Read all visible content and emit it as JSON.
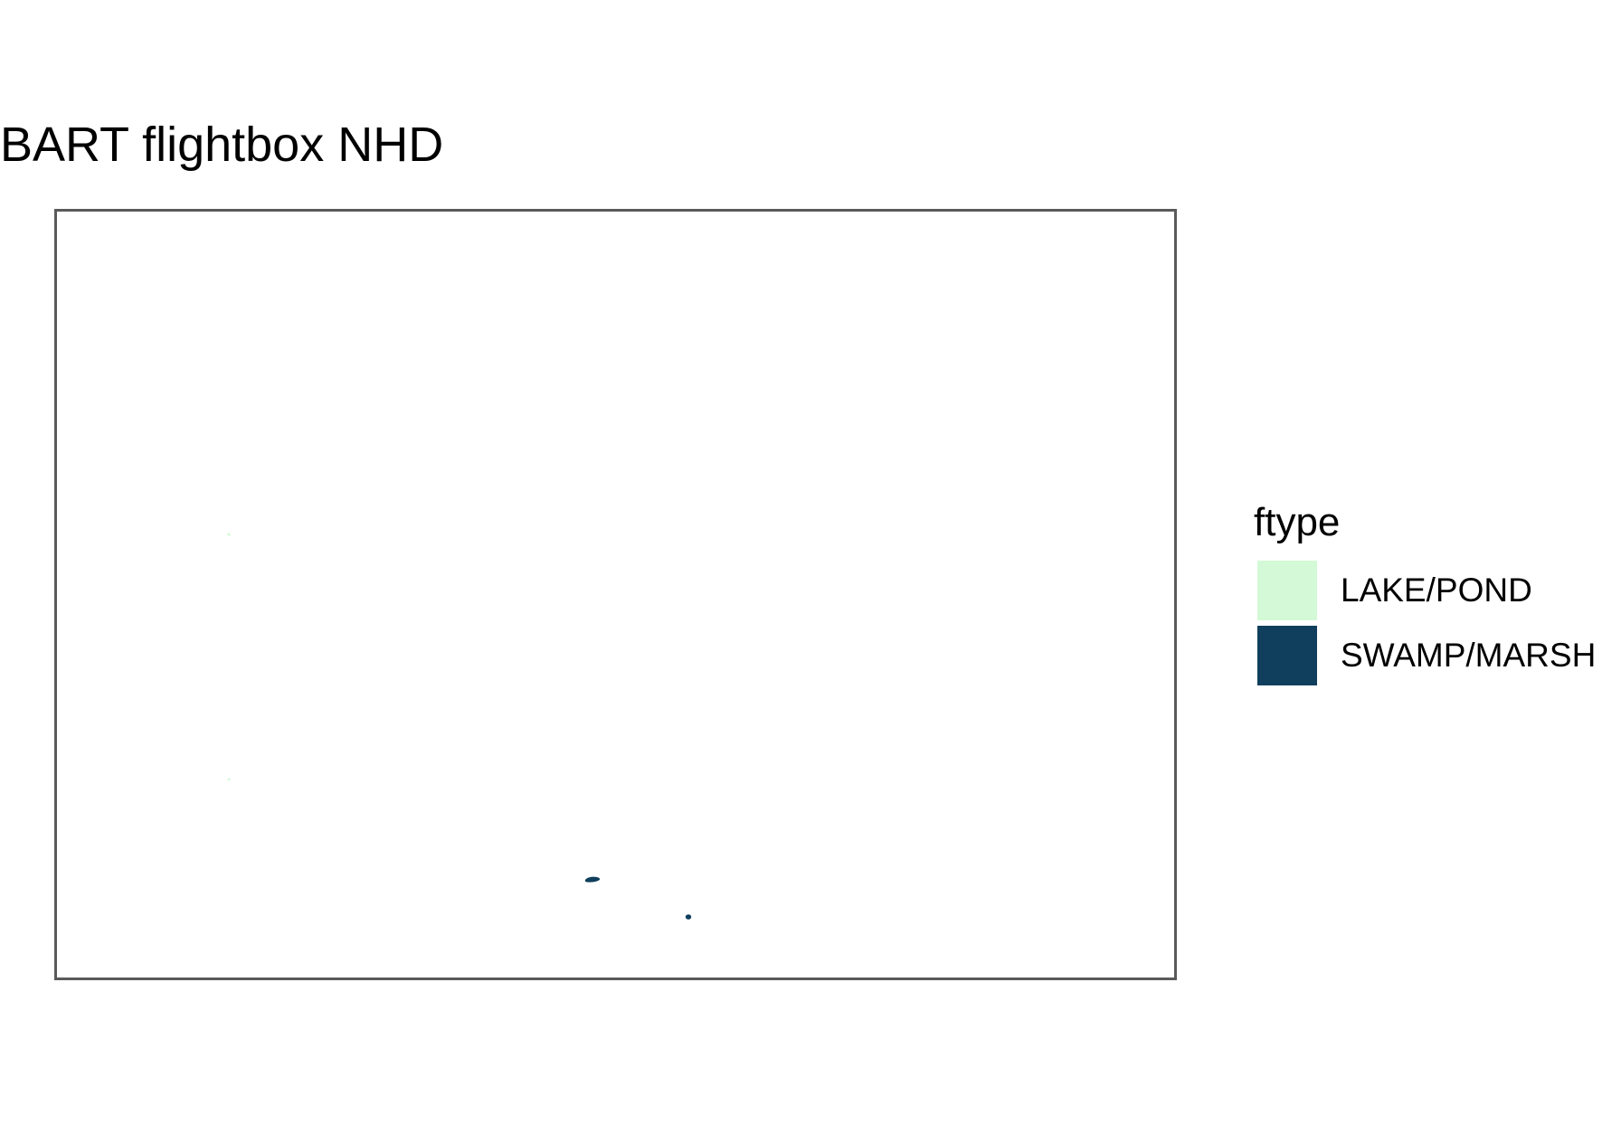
{
  "title": "BART flightbox NHD",
  "legend": {
    "title": "ftype",
    "items": [
      {
        "label": "LAKE/POND",
        "color": "#d3f9d6"
      },
      {
        "label": "SWAMP/MARSH",
        "color": "#0f3f5c"
      }
    ]
  },
  "map": {
    "frame_color": "#5a5a5a",
    "background": "#ffffff",
    "features": [
      {
        "ftype": "LAKE/POND",
        "kind": "speck"
      },
      {
        "ftype": "LAKE/POND",
        "kind": "speck"
      },
      {
        "ftype": "SWAMP/MARSH",
        "kind": "patch"
      },
      {
        "ftype": "SWAMP/MARSH",
        "kind": "patch"
      }
    ]
  }
}
